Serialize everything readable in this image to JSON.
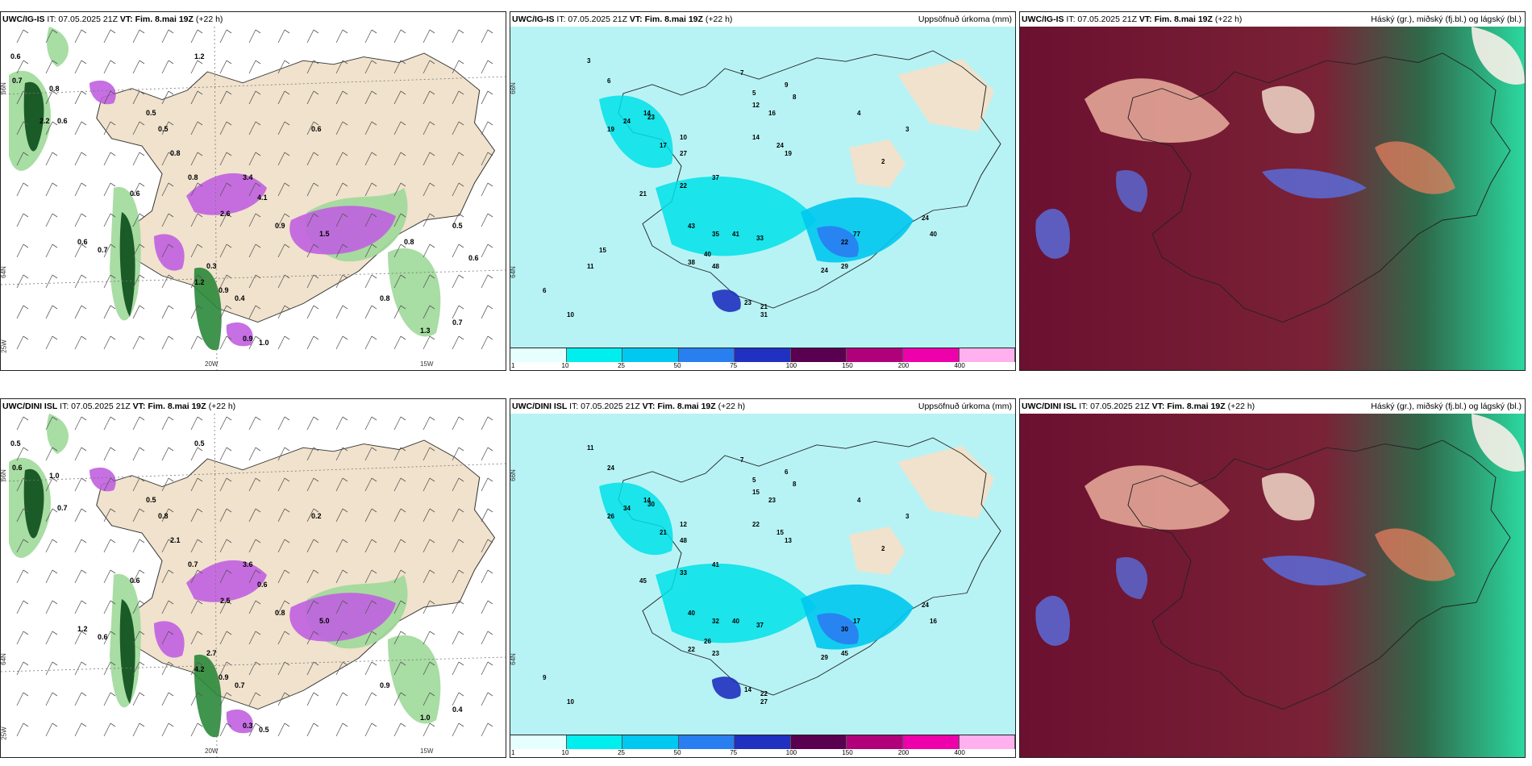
{
  "panels": [
    {
      "id": "top-wind",
      "model": "UWC/IG-IS",
      "issue": " IT: 07.05.2025 21Z ",
      "valid_label": "VT:",
      "valid": " Fim. 8.mai 19Z",
      "lead": " (+22 h)",
      "right_title": "",
      "lat_labels": [
        "66N",
        "64N",
        "25W"
      ],
      "lon_labels": [
        "20W",
        "15W"
      ],
      "values": [
        "0.6",
        "0.7",
        "0.8",
        "0.6",
        "0.5",
        "0.8",
        "0.5",
        "0.6",
        "1.2",
        "0.8",
        "0.9",
        "0.6",
        "1.5",
        "2.6",
        "3.4",
        "4.1",
        "0.3",
        "1.2",
        "0.9",
        "0.4",
        "0.6",
        "0.7",
        "0.9",
        "1.0",
        "0.8",
        "1.3",
        "0.7",
        "0.6",
        "0.5",
        "0.8",
        "2.2"
      ]
    },
    {
      "id": "top-precip",
      "model": "UWC/IG-IS",
      "issue": " IT: 07.05.2025 21Z ",
      "valid_label": "VT:",
      "valid": " Fim. 8.mai 19Z",
      "lead": " (+22 h)",
      "right_title": "Uppsöfnuð úrkoma (mm)",
      "lat_labels": [
        "66N",
        "64N"
      ],
      "values": [
        "3",
        "6",
        "14",
        "19",
        "24",
        "23",
        "17",
        "10",
        "12",
        "16",
        "14",
        "24",
        "19",
        "27",
        "22",
        "21",
        "37",
        "43",
        "38",
        "48",
        "35",
        "40",
        "41",
        "33",
        "22",
        "29",
        "24",
        "77",
        "40",
        "24",
        "21",
        "23",
        "31",
        "5",
        "7",
        "8",
        "9",
        "4",
        "3",
        "2",
        "6",
        "10",
        "11",
        "15"
      ]
    },
    {
      "id": "top-cloud",
      "model": "UWC/IG-IS",
      "issue": " IT: 07.05.2025 21Z ",
      "valid_label": "VT:",
      "valid": " Fim. 8.mai 19Z",
      "lead": " (+22 h)",
      "right_title": "Háský (gr.), miðský (fj.bl.) og lágský (bl.)"
    },
    {
      "id": "bottom-wind",
      "model": "UWC/DINI ISL",
      "issue": " IT: 07.05.2025 21Z ",
      "valid_label": "VT:",
      "valid": " Fim. 8.mai 19Z",
      "lead": " (+22 h)",
      "right_title": "",
      "lat_labels": [
        "66N",
        "64N",
        "25W"
      ],
      "lon_labels": [
        "20W",
        "15W"
      ],
      "values": [
        "0.5",
        "0.6",
        "1.0",
        "0.7",
        "0.5",
        "2.1",
        "0.8",
        "0.6",
        "0.5",
        "0.7",
        "0.8",
        "0.2",
        "5.0",
        "2.5",
        "3.6",
        "0.6",
        "2.7",
        "4.2",
        "0.9",
        "0.7",
        "1.2",
        "0.6",
        "0.3",
        "0.5",
        "0.9",
        "1.0",
        "0.4"
      ]
    },
    {
      "id": "bottom-precip",
      "model": "UWC/DINI ISL",
      "issue": " IT: 07.05.2025 21Z ",
      "valid_label": "VT:",
      "valid": " Fim. 8.mai 19Z",
      "lead": " (+22 h)",
      "right_title": "Uppsöfnuð úrkoma (mm)",
      "lat_labels": [
        "66N",
        "64N"
      ],
      "values": [
        "11",
        "24",
        "14",
        "26",
        "34",
        "30",
        "21",
        "12",
        "15",
        "23",
        "22",
        "15",
        "13",
        "48",
        "33",
        "45",
        "41",
        "40",
        "22",
        "23",
        "32",
        "26",
        "40",
        "37",
        "30",
        "45",
        "29",
        "17",
        "16",
        "24",
        "22",
        "14",
        "27",
        "5",
        "7",
        "8",
        "6",
        "4",
        "3",
        "2",
        "9",
        "10"
      ]
    },
    {
      "id": "bottom-cloud",
      "model": "UWC/DINI ISL",
      "issue": " IT: 07.05.2025 21Z ",
      "valid_label": "VT:",
      "valid": " Fim. 8.mai 19Z",
      "lead": " (+22 h)",
      "right_title": "Háský (gr.), miðský (fj.bl.) og lágský (bl.)"
    }
  ],
  "colorbar": {
    "labels": [
      "1",
      "10",
      "25",
      "50",
      "75",
      "100",
      "150",
      "200",
      "400"
    ],
    "colors": [
      "#e6ffff",
      "#00eeee",
      "#00c8f0",
      "#2a7ff0",
      "#2030c0",
      "#5a0050",
      "#b0007a",
      "#ee00aa",
      "#ffb0ee"
    ]
  },
  "colors": {
    "land": "#f0e2cc",
    "precip_light": "#b7f3f5",
    "cloud_dark": "#6b1030",
    "green_dark": "#0b4d1a",
    "purple": "#c060e0"
  }
}
